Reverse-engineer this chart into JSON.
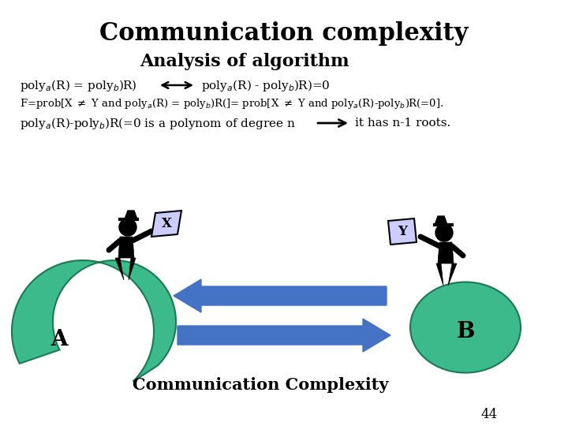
{
  "title": "Communication complexity",
  "subtitle": "Analysis of algorithm",
  "bg_color": "#ffffff",
  "green_color": "#3dba8c",
  "blue_arrow_color": "#4472c4",
  "card_color": "#ccccff",
  "page_num": "44",
  "bottom_label": "Communication Complexity",
  "title_fontsize": 22,
  "subtitle_fontsize": 16,
  "body_fontsize": 11
}
